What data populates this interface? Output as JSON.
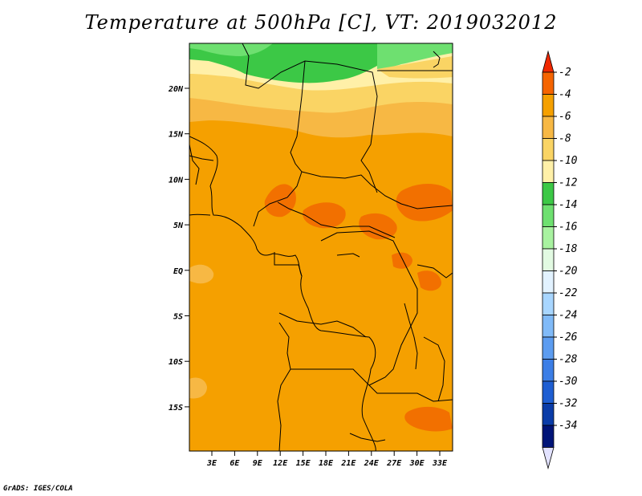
{
  "title": "Temperature at 500hPa [C], VT: 2019032012",
  "credit": "GrADS: IGES/COLA",
  "map": {
    "lat_labels": [
      "20N",
      "15N",
      "10N",
      "5N",
      "EQ",
      "5S",
      "10S",
      "15S"
    ],
    "lon_labels": [
      "3E",
      "6E",
      "9E",
      "12E",
      "15E",
      "18E",
      "21E",
      "24E",
      "27E",
      "30E",
      "33E"
    ],
    "region": "Central Africa",
    "colors": {
      "dominant": "#f5a000",
      "north_band": "#fad464",
      "warm_patches": "#f27000",
      "cold_top": "#3cc846"
    }
  },
  "colorbar": {
    "labels": [
      "-2",
      "-4",
      "-6",
      "-8",
      "-10",
      "-12",
      "-14",
      "-16",
      "-18",
      "-20",
      "-22",
      "-24",
      "-26",
      "-28",
      "-30",
      "-32",
      "-34"
    ],
    "colors": [
      "#f02800",
      "#f56400",
      "#f5a000",
      "#f7b844",
      "#fad464",
      "#fff0a8",
      "#3cc846",
      "#6ee070",
      "#a8f2a0",
      "#e2fae2",
      "#e2f2ff",
      "#a8d6ff",
      "#80baf8",
      "#5c9cf0",
      "#3c7ee6",
      "#1e5ed2",
      "#0a3ca8",
      "#001478",
      "#e2e2ff"
    ]
  }
}
